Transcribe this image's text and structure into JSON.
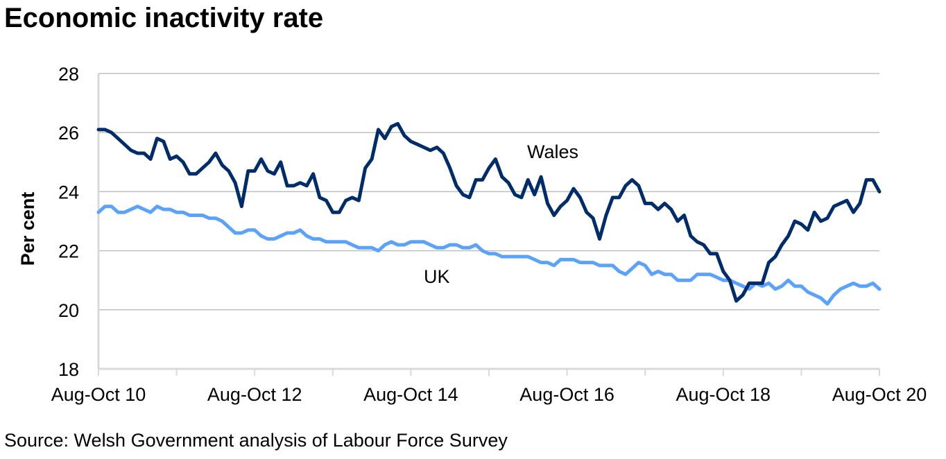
{
  "title": "Economic inactivity rate",
  "source": "Source: Welsh Government analysis of Labour Force Survey",
  "colors": {
    "wales": "#002D6A",
    "uk": "#5AA2FA",
    "grid": "#BFBFBF",
    "axis": "#D9D9D9"
  },
  "chart_data": {
    "type": "line",
    "title": "Economic inactivity rate",
    "xlabel": "",
    "ylabel": "Per cent",
    "ylim": [
      18,
      28
    ],
    "yticks": [
      "18",
      "20",
      "22",
      "24",
      "26",
      "28"
    ],
    "xtick_labels": [
      "Aug-Oct 10",
      "Aug-Oct 12",
      "Aug-Oct 14",
      "Aug-Oct 16",
      "Aug-Oct 18",
      "Aug-Oct 20"
    ],
    "x_start": "Aug-Oct 10",
    "x_end": "Aug-Oct 20",
    "x_frequency": "monthly rolling quarter",
    "grid": true,
    "legend": "inline labels",
    "series": [
      {
        "name": "Wales",
        "label": "Wales",
        "values": [
          26.1,
          26.1,
          26.0,
          25.8,
          25.6,
          25.4,
          25.3,
          25.3,
          25.1,
          25.8,
          25.7,
          25.1,
          25.2,
          25.0,
          24.6,
          24.6,
          24.8,
          25.0,
          25.3,
          24.9,
          24.7,
          24.3,
          23.5,
          24.7,
          24.7,
          25.1,
          24.7,
          24.6,
          25.0,
          24.2,
          24.2,
          24.3,
          24.2,
          24.6,
          23.8,
          23.7,
          23.3,
          23.3,
          23.7,
          23.8,
          23.7,
          24.8,
          25.1,
          26.1,
          25.8,
          26.2,
          26.3,
          25.9,
          25.7,
          25.6,
          25.5,
          25.4,
          25.5,
          25.3,
          24.8,
          24.2,
          23.9,
          23.8,
          24.4,
          24.4,
          24.8,
          25.1,
          24.5,
          24.3,
          23.9,
          23.8,
          24.4,
          23.9,
          24.5,
          23.6,
          23.2,
          23.5,
          23.7,
          24.1,
          23.8,
          23.3,
          23.1,
          22.4,
          23.2,
          23.8,
          23.8,
          24.2,
          24.4,
          24.2,
          23.6,
          23.6,
          23.4,
          23.6,
          23.4,
          23.0,
          23.2,
          22.5,
          22.3,
          22.2,
          21.9,
          21.9,
          21.3,
          21.0,
          20.3,
          20.5,
          20.9,
          20.9,
          20.9,
          21.6,
          21.8,
          22.2,
          22.5,
          23.0,
          22.9,
          22.7,
          23.3,
          23.0,
          23.1,
          23.5,
          23.6,
          23.7,
          23.3,
          23.6,
          24.4,
          24.4,
          24.0
        ]
      },
      {
        "name": "UK",
        "label": "UK",
        "values": [
          23.3,
          23.5,
          23.5,
          23.3,
          23.3,
          23.4,
          23.5,
          23.4,
          23.3,
          23.5,
          23.4,
          23.4,
          23.3,
          23.3,
          23.2,
          23.2,
          23.2,
          23.1,
          23.1,
          23.0,
          22.8,
          22.6,
          22.6,
          22.7,
          22.7,
          22.5,
          22.4,
          22.4,
          22.5,
          22.6,
          22.6,
          22.7,
          22.5,
          22.4,
          22.4,
          22.3,
          22.3,
          22.3,
          22.3,
          22.2,
          22.1,
          22.1,
          22.1,
          22.0,
          22.2,
          22.3,
          22.2,
          22.2,
          22.3,
          22.3,
          22.3,
          22.2,
          22.1,
          22.1,
          22.2,
          22.2,
          22.1,
          22.1,
          22.2,
          22.0,
          21.9,
          21.9,
          21.8,
          21.8,
          21.8,
          21.8,
          21.8,
          21.7,
          21.6,
          21.6,
          21.5,
          21.7,
          21.7,
          21.7,
          21.6,
          21.6,
          21.6,
          21.5,
          21.5,
          21.5,
          21.3,
          21.2,
          21.4,
          21.6,
          21.5,
          21.2,
          21.3,
          21.2,
          21.2,
          21.0,
          21.0,
          21.0,
          21.2,
          21.2,
          21.2,
          21.1,
          21.0,
          21.0,
          20.9,
          20.8,
          20.7,
          20.9,
          20.8,
          20.9,
          20.7,
          20.8,
          21.0,
          20.8,
          20.8,
          20.6,
          20.5,
          20.4,
          20.2,
          20.5,
          20.7,
          20.8,
          20.9,
          20.8,
          20.8,
          20.9,
          20.7
        ]
      }
    ]
  }
}
